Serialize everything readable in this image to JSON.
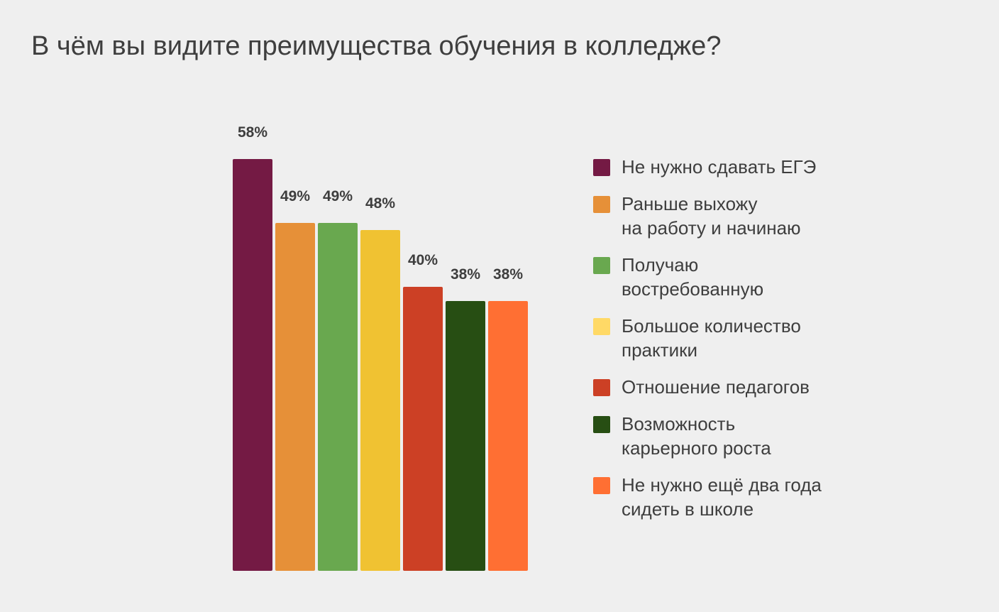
{
  "chart_data": {
    "type": "bar",
    "title": "В чём вы видите преимущества обучения в колледже?",
    "categories": [
      "Не нужно сдавать ЕГЭ",
      "Раньше выхожу\nна работу и начинаю",
      "Получаю\nвостребованную",
      "Большое количество\nпрактики",
      "Отношение педагогов",
      "Возможность\nкарьерного роста",
      "Не нужно ещё два года\nсидеть в школе"
    ],
    "values": [
      58,
      49,
      49,
      48,
      40,
      38,
      38
    ],
    "value_labels": [
      "58%",
      "49%",
      "49%",
      "48%",
      "40%",
      "38%",
      "38%"
    ],
    "colors": [
      "#741a44",
      "#e69038",
      "#69a84f",
      "#f0c232",
      "#cc4025",
      "#274e13",
      "#ff6f33"
    ],
    "legend_colors": [
      "#741a44",
      "#e69038",
      "#69a84f",
      "#ffd966",
      "#cc4025",
      "#274e13",
      "#ff6f33"
    ],
    "unit": "%",
    "ylim": [
      0,
      58
    ],
    "grid": false,
    "legend_position": "right"
  }
}
